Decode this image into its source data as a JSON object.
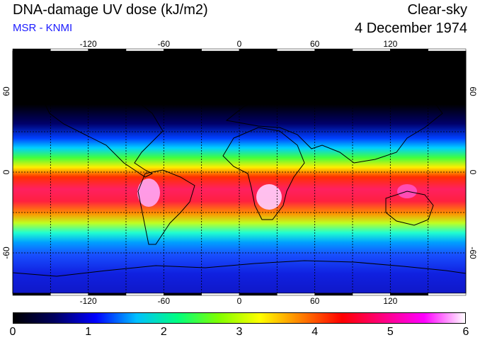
{
  "header": {
    "title": "DNA-damage UV dose (kJ/m2)",
    "source": "MSR - KNMI",
    "condition": "Clear-sky",
    "date": "4 December 1974"
  },
  "map": {
    "longitude_ticks": [
      "-120",
      "-60",
      "0",
      "60",
      "120"
    ],
    "longitude_values": [
      -120,
      -60,
      0,
      60,
      120
    ],
    "latitude_ticks_left": [
      "60",
      "0",
      "-60"
    ],
    "latitude_ticks_right": [
      "60",
      "0",
      "-60"
    ],
    "latitude_values": [
      60,
      0,
      -60
    ],
    "lon_range": [
      -180,
      180
    ],
    "lat_range": [
      -90,
      90
    ]
  },
  "colorbar": {
    "labels": [
      "0",
      "1",
      "2",
      "3",
      "4",
      "5",
      "6"
    ],
    "min": 0,
    "max": 6,
    "stops": [
      "#000000",
      "#000060",
      "#0000ff",
      "#00c0ff",
      "#00ff80",
      "#80ff00",
      "#ffff00",
      "#ff8000",
      "#ff0000",
      "#ff0080",
      "#ff00ff",
      "#ffffff"
    ]
  },
  "colors": {
    "source_text": "#1a1aff"
  }
}
